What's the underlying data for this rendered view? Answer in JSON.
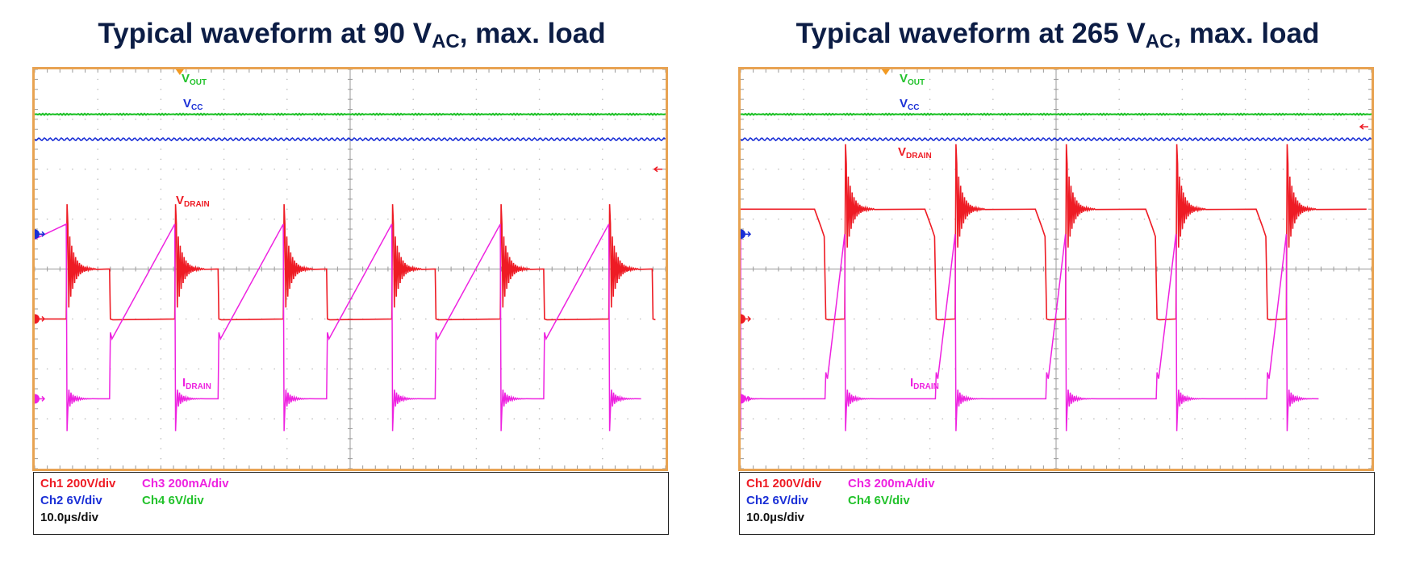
{
  "colors": {
    "vout": "#22c22b",
    "vcc": "#1a2fd6",
    "vdrain": "#ee1b24",
    "idrain": "#ee22e0",
    "frame": "#e8a352",
    "title": "#0c1d45"
  },
  "panels": [
    {
      "title_main": "Typical waveform at 90 V",
      "title_sub": "AC",
      "title_tail": ", max. load",
      "labels": {
        "vout": {
          "main": "V",
          "sub": "OUT"
        },
        "vcc": {
          "main": "V",
          "sub": "CC"
        },
        "vdrain": {
          "main": "V",
          "sub": "DRAIN"
        },
        "idrain": {
          "main": "I",
          "sub": "DRAIN"
        }
      },
      "scales": {
        "ch1": "Ch1 200V/div",
        "ch3": "Ch3 200mA/div",
        "ch2": "Ch2 6V/div",
        "ch4": "Ch4 6V/div",
        "time": "10.0µs/div"
      }
    },
    {
      "title_main": "Typical waveform at 265 V",
      "title_sub": "AC",
      "title_tail": ", max. load",
      "labels": {
        "vout": {
          "main": "V",
          "sub": "OUT"
        },
        "vcc": {
          "main": "V",
          "sub": "CC"
        },
        "vdrain": {
          "main": "V",
          "sub": "DRAIN"
        },
        "idrain": {
          "main": "I",
          "sub": "DRAIN"
        }
      },
      "scales": {
        "ch1": "Ch1 200V/div",
        "ch3": "Ch3 200mA/div",
        "ch2": "Ch2 6V/div",
        "ch4": "Ch4 6V/div",
        "time": "10.0µs/div"
      }
    }
  ],
  "chart_data": [
    {
      "type": "line",
      "title": "Typical waveform at 90 VAC, max. load",
      "x_divisions": 10,
      "y_divisions": 8,
      "grid": true,
      "time_per_div_us": 10.0,
      "switching_period_us": 17.2,
      "on_time_us": 10.2,
      "series": [
        {
          "name": "VOUT",
          "channel": "Ch4",
          "volts_per_div": 6,
          "level_div": 7.1
        },
        {
          "name": "VCC",
          "channel": "Ch2",
          "volts_per_div": 6,
          "level_div": 6.6
        },
        {
          "name": "VDRAIN",
          "channel": "Ch1",
          "volts_per_div": 200,
          "off_level_div": 1.0,
          "peak_div": 2.3,
          "on_level_div": 0.0
        },
        {
          "name": "IDRAIN",
          "channel": "Ch3",
          "amps_per_div": 0.2,
          "ramp_start_div": 1.2,
          "ramp_peak_div": 3.5
        }
      ]
    },
    {
      "type": "line",
      "title": "Typical waveform at 265 VAC, max. load",
      "x_divisions": 10,
      "y_divisions": 8,
      "grid": true,
      "time_per_div_us": 10.0,
      "switching_period_us": 17.5,
      "on_time_us": 3.0,
      "series": [
        {
          "name": "VOUT",
          "channel": "Ch4",
          "volts_per_div": 6,
          "level_div": 7.1
        },
        {
          "name": "VCC",
          "channel": "Ch2",
          "volts_per_div": 6,
          "level_div": 6.6
        },
        {
          "name": "VDRAIN",
          "channel": "Ch1",
          "volts_per_div": 200,
          "off_level_div": 2.2,
          "peak_div": 3.5,
          "on_level_div": 0.0
        },
        {
          "name": "IDRAIN",
          "channel": "Ch3",
          "amps_per_div": 0.2,
          "ramp_start_div": 0.4,
          "ramp_peak_div": 3.3
        }
      ]
    }
  ]
}
